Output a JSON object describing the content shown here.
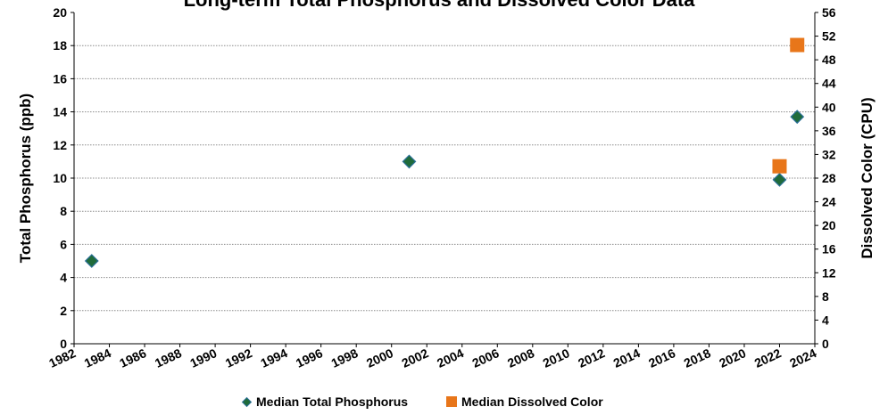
{
  "chart_data": {
    "type": "scatter",
    "title": "Long-term Total Phosphorus and Dissolved Color Data",
    "ylabel": "Total Phosphorus (ppb)",
    "y2label": "Dissolved Color (CPU)",
    "xlim": [
      1982,
      2024
    ],
    "ylim": [
      0,
      20
    ],
    "y2lim": [
      0,
      56
    ],
    "x_ticks": [
      "1982",
      "1984",
      "1986",
      "1988",
      "1990",
      "1992",
      "1994",
      "1996",
      "1998",
      "2000",
      "2002",
      "2004",
      "2006",
      "2008",
      "2010",
      "2012",
      "2014",
      "2016",
      "2018",
      "2020",
      "2022",
      "2024"
    ],
    "y_ticks": [
      "0",
      "2",
      "4",
      "6",
      "8",
      "10",
      "12",
      "14",
      "16",
      "18",
      "20"
    ],
    "y2_ticks": [
      "0",
      "4",
      "8",
      "12",
      "16",
      "20",
      "24",
      "28",
      "32",
      "36",
      "40",
      "44",
      "48",
      "52",
      "56"
    ],
    "grid": true,
    "legend_position": "bottom",
    "series": [
      {
        "name": "Median Total Phosphorus",
        "axis": "left",
        "marker": "diamond",
        "color": "#1f6b3a",
        "edge_color": "#2a6f97",
        "points": [
          {
            "x": 1983,
            "y": 5.0
          },
          {
            "x": 2001,
            "y": 11.0
          },
          {
            "x": 2022,
            "y": 9.9
          },
          {
            "x": 2023,
            "y": 13.7
          }
        ]
      },
      {
        "name": "Median Dissolved Color",
        "axis": "right",
        "marker": "square",
        "color": "#e8761a",
        "points": [
          {
            "x": 2022,
            "y": 30.0
          },
          {
            "x": 2023,
            "y": 50.5
          }
        ]
      }
    ]
  }
}
